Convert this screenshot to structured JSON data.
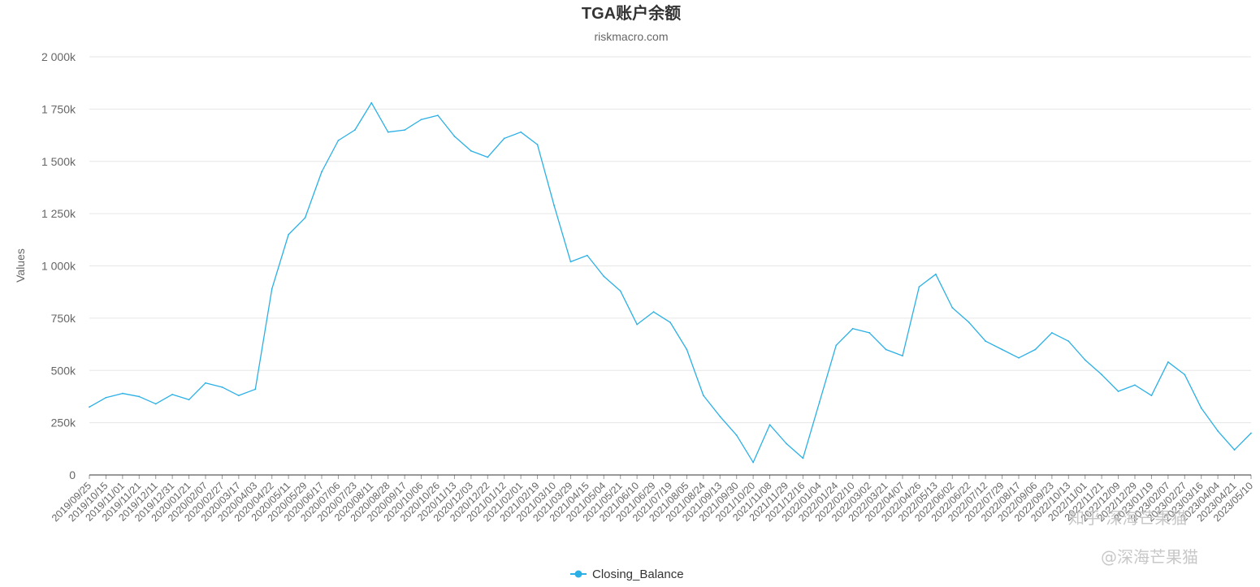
{
  "chart_data": {
    "type": "line",
    "title": "TGA账户余额",
    "subtitle": "riskmacro.com",
    "ylabel": "Values",
    "xlabel": "",
    "ylim": [
      0,
      2000000
    ],
    "yticks": [
      0,
      250000,
      500000,
      750000,
      1000000,
      1250000,
      1500000,
      1750000,
      2000000
    ],
    "ytick_labels": [
      "0",
      "250k",
      "500k",
      "750k",
      "1 000k",
      "1 250k",
      "1 500k",
      "1 750k",
      "2 000k"
    ],
    "grid": true,
    "legend_position": "bottom-center",
    "line_color": "#2bb0e6",
    "x_tick_labels": [
      "2019/09/25",
      "2019/10/15",
      "2019/11/01",
      "2019/11/21",
      "2019/12/11",
      "2019/12/31",
      "2020/01/21",
      "2020/02/07",
      "2020/02/27",
      "2020/03/17",
      "2020/04/03",
      "2020/04/22",
      "2020/05/11",
      "2020/05/29",
      "2020/06/17",
      "2020/07/06",
      "2020/07/23",
      "2020/08/11",
      "2020/08/28",
      "2020/09/17",
      "2020/10/06",
      "2020/10/26",
      "2020/11/13",
      "2020/12/03",
      "2020/12/22",
      "2021/01/12",
      "2021/02/01",
      "2021/02/19",
      "2021/03/10",
      "2021/03/29",
      "2021/04/15",
      "2021/05/04",
      "2021/05/21",
      "2021/06/10",
      "2021/06/29",
      "2021/07/19",
      "2021/08/05",
      "2021/08/24",
      "2021/09/13",
      "2021/09/30",
      "2021/10/20",
      "2021/11/08",
      "2021/11/29",
      "2021/12/16",
      "2022/01/04",
      "2022/01/24",
      "2022/02/10",
      "2022/03/02",
      "2022/03/21",
      "2022/04/07",
      "2022/04/26",
      "2022/05/13",
      "2022/06/02",
      "2022/06/22",
      "2022/07/12",
      "2022/07/29",
      "2022/08/17",
      "2022/09/06",
      "2022/09/23",
      "2022/10/13",
      "2022/11/01",
      "2022/11/21",
      "2022/12/09",
      "2022/12/29",
      "2023/01/19",
      "2023/02/07",
      "2023/02/27",
      "2023/03/16",
      "2023/04/04",
      "2023/04/21",
      "2023/05/10"
    ],
    "series": [
      {
        "name": "Closing_Balance",
        "x": [
          "2019/09/25",
          "2019/10/15",
          "2019/11/01",
          "2019/11/21",
          "2019/12/11",
          "2019/12/31",
          "2020/01/21",
          "2020/02/07",
          "2020/02/27",
          "2020/03/17",
          "2020/04/03",
          "2020/04/22",
          "2020/05/11",
          "2020/05/29",
          "2020/06/17",
          "2020/07/06",
          "2020/07/23",
          "2020/08/11",
          "2020/08/28",
          "2020/09/17",
          "2020/10/06",
          "2020/10/26",
          "2020/11/13",
          "2020/12/03",
          "2020/12/22",
          "2021/01/12",
          "2021/02/01",
          "2021/02/19",
          "2021/03/10",
          "2021/03/29",
          "2021/04/15",
          "2021/05/04",
          "2021/05/21",
          "2021/06/10",
          "2021/06/29",
          "2021/07/19",
          "2021/08/05",
          "2021/08/24",
          "2021/09/13",
          "2021/09/30",
          "2021/10/20",
          "2021/11/08",
          "2021/11/29",
          "2021/12/16",
          "2022/01/04",
          "2022/01/24",
          "2022/02/10",
          "2022/03/02",
          "2022/03/21",
          "2022/04/07",
          "2022/04/26",
          "2022/05/13",
          "2022/06/02",
          "2022/06/22",
          "2022/07/12",
          "2022/07/29",
          "2022/08/17",
          "2022/09/06",
          "2022/09/23",
          "2022/10/13",
          "2022/11/01",
          "2022/11/21",
          "2022/12/09",
          "2022/12/29",
          "2023/01/19",
          "2023/02/07",
          "2023/02/27",
          "2023/03/16",
          "2023/04/04",
          "2023/04/21",
          "2023/05/10"
        ],
        "values": [
          325000,
          370000,
          390000,
          375000,
          340000,
          385000,
          360000,
          440000,
          420000,
          380000,
          410000,
          890000,
          1150000,
          1230000,
          1450000,
          1600000,
          1650000,
          1780000,
          1640000,
          1650000,
          1700000,
          1720000,
          1620000,
          1550000,
          1520000,
          1610000,
          1640000,
          1580000,
          1290000,
          1020000,
          1050000,
          950000,
          880000,
          720000,
          780000,
          730000,
          600000,
          380000,
          280000,
          190000,
          60000,
          240000,
          150000,
          80000,
          350000,
          620000,
          700000,
          680000,
          600000,
          570000,
          900000,
          960000,
          800000,
          730000,
          640000,
          600000,
          560000,
          600000,
          680000,
          640000,
          550000,
          480000,
          400000,
          430000,
          380000,
          540000,
          480000,
          320000,
          210000,
          120000,
          200000
        ]
      }
    ]
  },
  "watermarks": [
    "@深海芒果猫",
    "知乎·深海芒果猫"
  ]
}
